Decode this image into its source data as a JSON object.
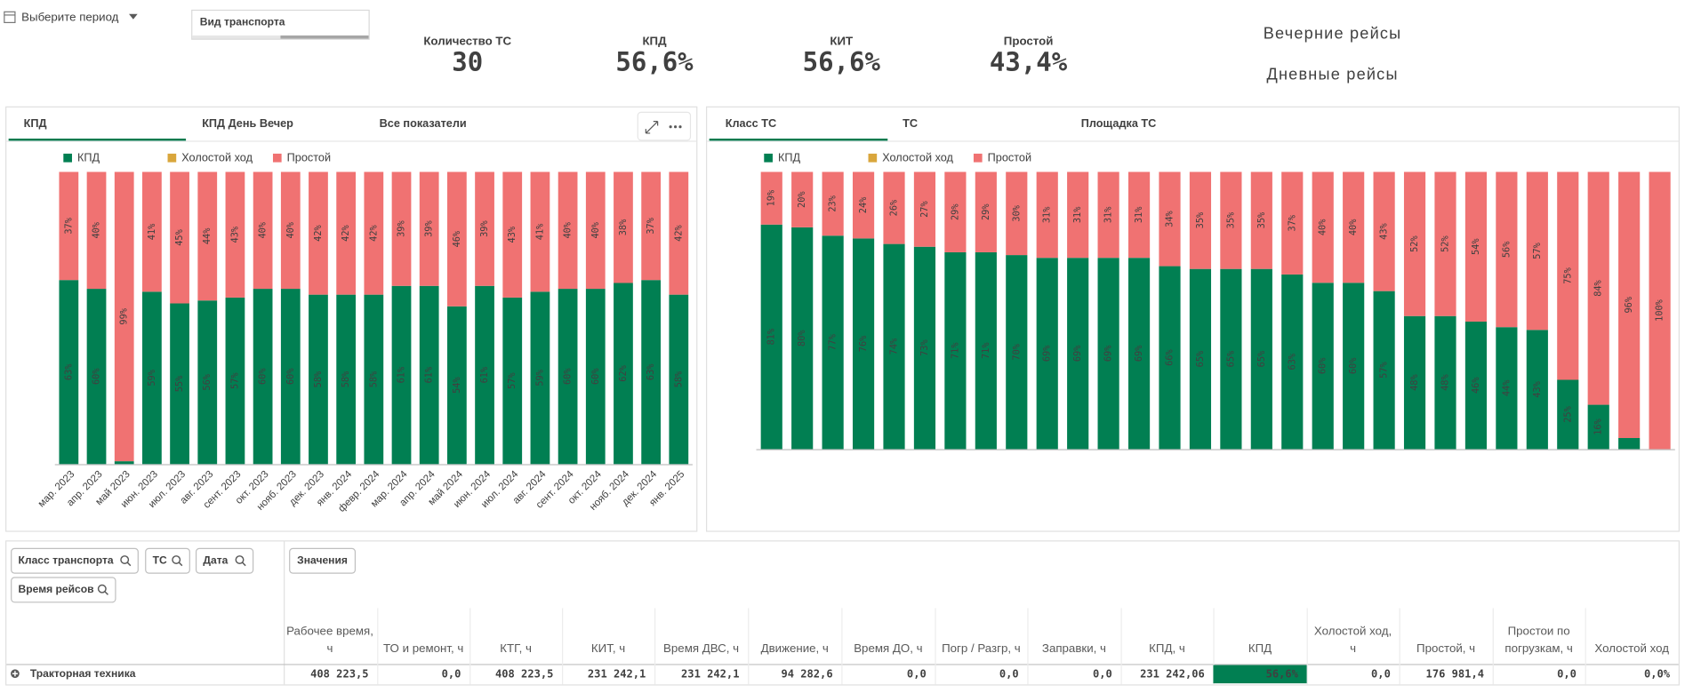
{
  "header": {
    "period": "Выберите период",
    "transport_filter": "Вид транспорта",
    "mode_buttons": [
      "Вечерние рейсы",
      "Дневные рейсы"
    ]
  },
  "kpis": [
    {
      "label": "Количество ТС",
      "value": "30",
      "color": "#1b8fa6"
    },
    {
      "label": "КПД",
      "value": "56,6%",
      "color": "#017a4e"
    },
    {
      "label": "КИТ",
      "value": "56,6%",
      "color": "#1b8fa6"
    },
    {
      "label": "Простой",
      "value": "43,4%",
      "color": "#ef6b6b"
    }
  ],
  "left_panel": {
    "tabs": [
      "КПД",
      "КПД День Вечер",
      "Все показатели"
    ],
    "chart": {
      "type": "stacked_bar",
      "ylim": [
        0,
        100
      ],
      "categories": [
        "мар. 2023",
        "апр. 2023",
        "май 2023",
        "июн. 2023",
        "июл. 2023",
        "авг. 2023",
        "сент. 2023",
        "окт. 2023",
        "нояб. 2023",
        "дек. 2023",
        "янв. 2024",
        "февр. 2024",
        "мар. 2024",
        "апр. 2024",
        "май 2024",
        "июн. 2024",
        "июл. 2024",
        "авг. 2024",
        "сент. 2024",
        "окт. 2024",
        "нояб. 2024",
        "дек. 2024",
        "янв. 2025"
      ],
      "series": [
        {
          "name": "КПД",
          "color": "#017f52",
          "values": [
            63,
            60,
            1,
            59,
            55,
            56,
            57,
            60,
            60,
            58,
            58,
            58,
            61,
            61,
            54,
            61,
            57,
            59,
            60,
            60,
            62,
            63,
            58
          ],
          "value_labels": [
            "63%",
            "60%",
            null,
            "59%",
            "55%",
            "56%",
            "57%",
            "60%",
            "60%",
            "58%",
            "58%",
            "58%",
            "61%",
            "61%",
            "54%",
            "61%",
            "57%",
            "59%",
            "60%",
            "60%",
            "62%",
            "63%",
            "58%"
          ]
        },
        {
          "name": "Холостой ход",
          "color": "#d9a63c",
          "values": [
            0,
            0,
            0,
            0,
            0,
            0,
            0,
            0,
            0,
            0,
            0,
            0,
            0,
            0,
            0,
            0,
            0,
            0,
            0,
            0,
            0,
            0,
            0
          ]
        },
        {
          "name": "Простой",
          "color": "#f07272",
          "values": [
            37,
            40,
            99,
            41,
            45,
            44,
            43,
            40,
            40,
            42,
            42,
            42,
            39,
            39,
            46,
            39,
            43,
            41,
            40,
            40,
            38,
            37,
            42
          ],
          "value_labels": [
            "37%",
            "40%",
            "99%",
            "41%",
            "45%",
            "44%",
            "43%",
            "40%",
            "40%",
            "42%",
            "42%",
            "42%",
            "39%",
            "39%",
            "46%",
            "39%",
            "43%",
            "41%",
            "40%",
            "40%",
            "38%",
            "37%",
            "42%"
          ]
        }
      ]
    }
  },
  "right_panel": {
    "tabs": [
      "Класс ТС",
      "ТС",
      "Площадка ТС"
    ],
    "chart": {
      "type": "stacked_bar",
      "ylim": [
        0,
        100
      ],
      "categories": [
        null,
        null,
        null,
        null,
        null,
        null,
        null,
        null,
        null,
        null,
        null,
        null,
        null,
        null,
        null,
        null,
        null,
        null,
        null,
        null,
        null,
        null,
        null,
        null,
        null,
        null,
        null,
        null,
        null,
        null
      ],
      "series": [
        {
          "name": "КПД",
          "color": "#017f52",
          "values": [
            81,
            80,
            77,
            76,
            74,
            73,
            71,
            71,
            70,
            69,
            69,
            69,
            69,
            66,
            65,
            65,
            65,
            63,
            60,
            60,
            57,
            48,
            48,
            46,
            44,
            43,
            25,
            16,
            4,
            0
          ],
          "value_labels": [
            "81%",
            "80%",
            "77%",
            "76%",
            "74%",
            "73%",
            "71%",
            "71%",
            "70%",
            "69%",
            "69%",
            "69%",
            "69%",
            "66%",
            "65%",
            "65%",
            "65%",
            "63%",
            "60%",
            "60%",
            "57%",
            "48%",
            "48%",
            "46%",
            "44%",
            "43%",
            "25%",
            "16%",
            null,
            null
          ]
        },
        {
          "name": "Холостой ход",
          "color": "#d9a63c",
          "values": [
            0,
            0,
            0,
            0,
            0,
            0,
            0,
            0,
            0,
            0,
            0,
            0,
            0,
            0,
            0,
            0,
            0,
            0,
            0,
            0,
            0,
            0,
            0,
            0,
            0,
            0,
            0,
            0,
            0,
            0
          ]
        },
        {
          "name": "Простой",
          "color": "#f07272",
          "values": [
            19,
            20,
            23,
            24,
            26,
            27,
            29,
            29,
            30,
            31,
            31,
            31,
            31,
            34,
            35,
            35,
            35,
            37,
            40,
            40,
            43,
            52,
            52,
            54,
            56,
            57,
            75,
            84,
            96,
            100
          ],
          "value_labels": [
            "19%",
            "20%",
            "23%",
            "24%",
            "26%",
            "27%",
            "29%",
            "29%",
            "30%",
            "31%",
            "31%",
            "31%",
            "31%",
            "34%",
            "35%",
            "35%",
            "35%",
            "37%",
            "40%",
            "40%",
            "43%",
            "52%",
            "52%",
            "54%",
            "56%",
            "57%",
            "75%",
            "84%",
            "96%",
            "100%"
          ]
        }
      ]
    }
  },
  "table": {
    "filters": [
      "Класс транспорта",
      "ТС",
      "Дата",
      "Время рейсов"
    ],
    "values_button": "Значения",
    "columns": [
      "Рабочее время, ч",
      "ТО и ремонт, ч",
      "КТГ, ч",
      "КИТ, ч",
      "Время ДВС, ч",
      "Движение, ч",
      "Время ДО, ч",
      "Погр / Разгр, ч",
      "Заправки, ч",
      "КПД, ч",
      "КПД",
      "Холостой ход, ч",
      "Простой, ч",
      "Простои по погрузкам, ч",
      "Холостой ход"
    ],
    "rows": [
      {
        "label": "Тракторная техника",
        "cells": [
          "408 223,5",
          "0,0",
          "408 223,5",
          "231 242,1",
          "231 242,1",
          "94 282,6",
          "0,0",
          "0,0",
          "0,0",
          "231 242,06",
          "56,6%",
          "0,0",
          "176 981,4",
          "0,0",
          "0,0%"
        ]
      }
    ]
  }
}
